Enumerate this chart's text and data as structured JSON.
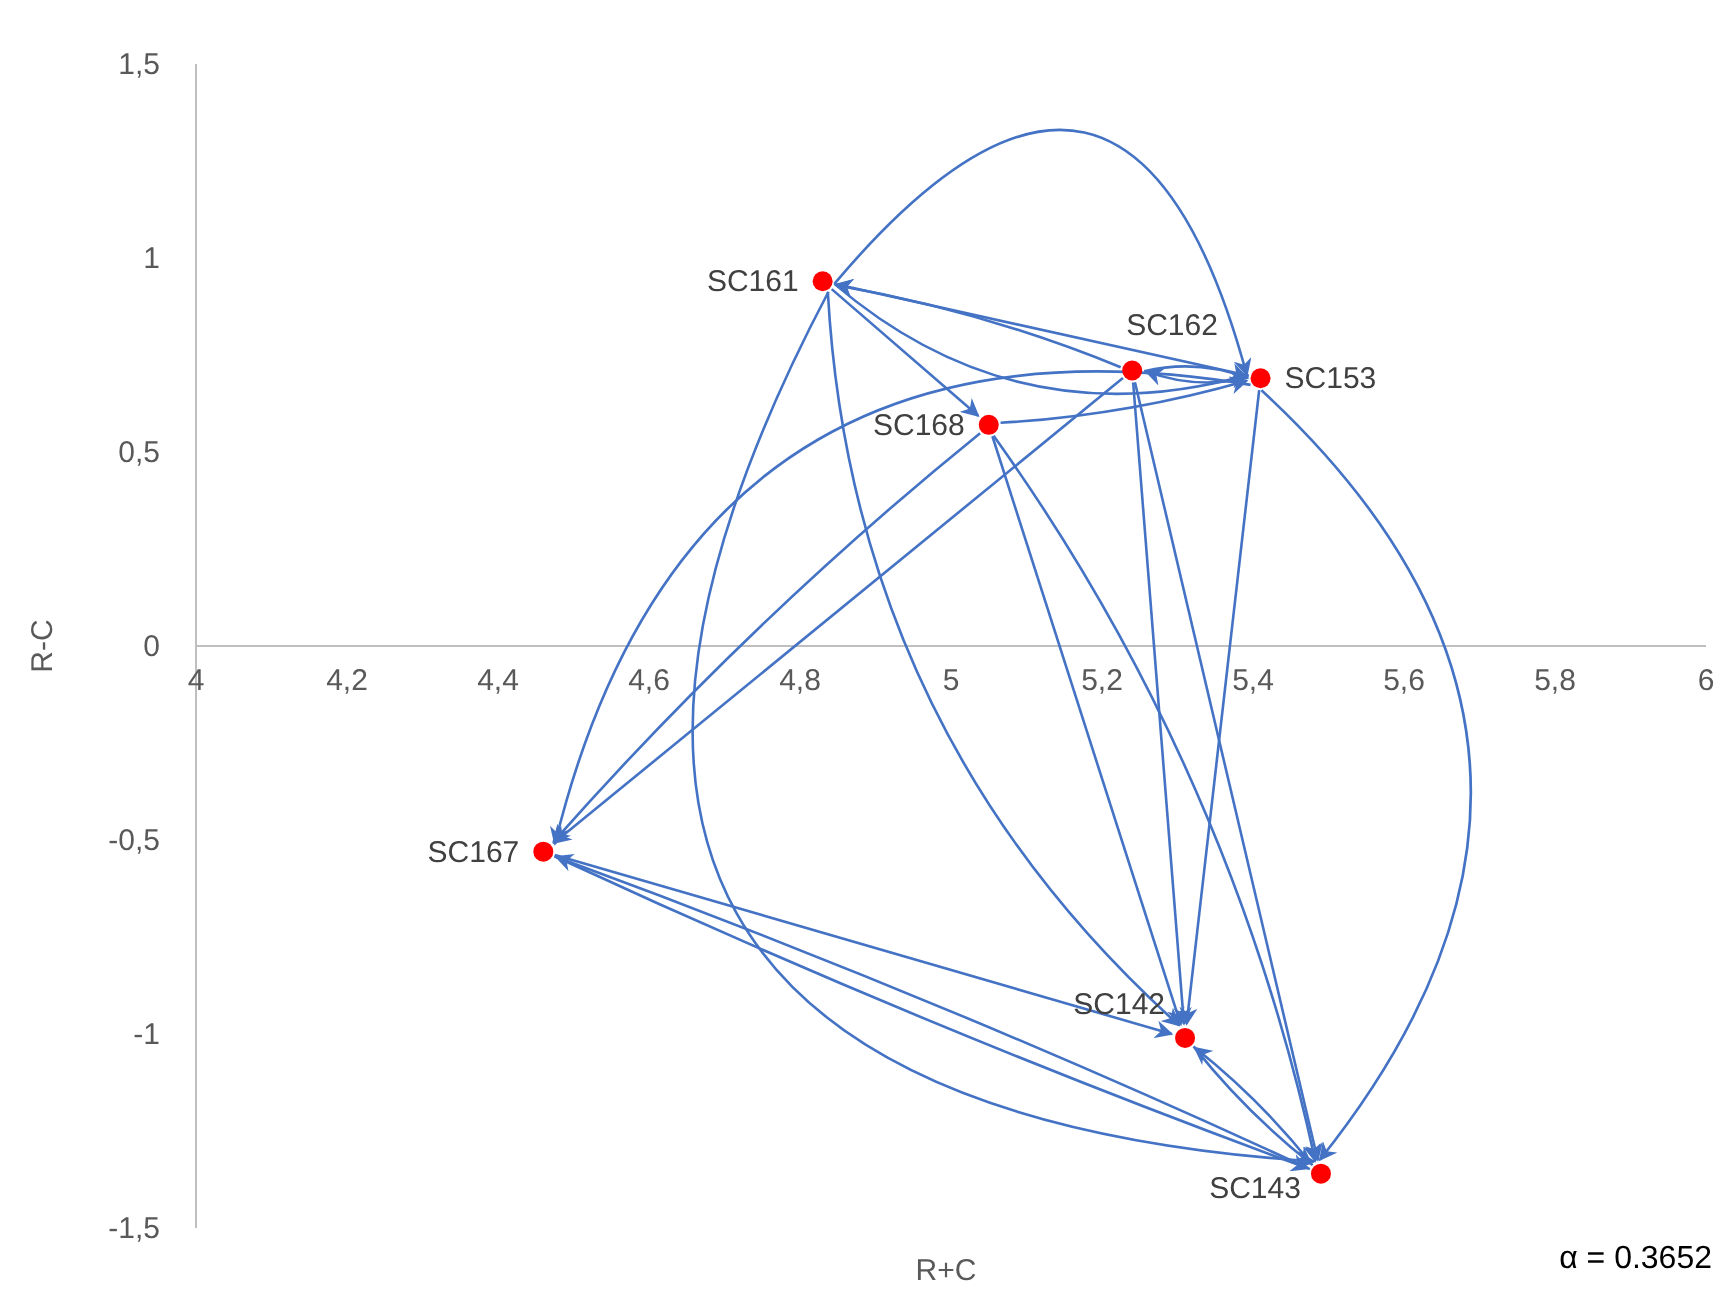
{
  "chart_data": {
    "type": "scatter",
    "xlabel": "R+C",
    "ylabel": "R-C",
    "x": [
      4.83,
      5.24,
      5.41,
      5.05,
      4.46,
      5.31,
      5.49
    ],
    "values": [
      0.94,
      0.71,
      0.69,
      0.57,
      -0.53,
      -1.01,
      -1.36
    ],
    "color": "#ff0000",
    "marker": "circle",
    "grid": false,
    "xlim": [
      4,
      6
    ],
    "ylim": [
      -1.5,
      1.5
    ],
    "xticks": [
      4,
      {
        "value": 4.2,
        "label": "4,2"
      },
      {
        "value": 4.4,
        "label": "4,4"
      },
      {
        "value": 4.6,
        "label": "4,6"
      },
      {
        "value": 4.8,
        "label": "4,8"
      },
      5,
      {
        "value": 5.2,
        "label": "5,2"
      },
      {
        "value": 5.4,
        "label": "5,4"
      },
      {
        "value": 5.6,
        "label": "5,6"
      },
      {
        "value": 5.8,
        "label": "5,8"
      },
      6
    ],
    "yticks": [
      {
        "value": -1.5,
        "label": "-1,5"
      },
      -1,
      {
        "value": -0.5,
        "label": "-0,5"
      },
      0,
      {
        "value": 0.5,
        "label": "0,5"
      },
      1,
      {
        "value": 1.5,
        "label": "1,5"
      }
    ],
    "annotations": [
      {
        "text": "SC161",
        "x": 4.83,
        "y": 0.94
      },
      {
        "text": "SC162",
        "x": 5.24,
        "y": 0.71
      },
      {
        "text": "SC153",
        "x": 5.41,
        "y": 0.69
      },
      {
        "text": "SC168",
        "x": 5.05,
        "y": 0.57
      },
      {
        "text": "SC167",
        "x": 4.46,
        "y": -0.53
      },
      {
        "text": "SC142",
        "x": 5.31,
        "y": -1.01
      },
      {
        "text": "SC143",
        "x": 5.49,
        "y": -1.36
      },
      "α = 0.3652"
    ]
  }
}
